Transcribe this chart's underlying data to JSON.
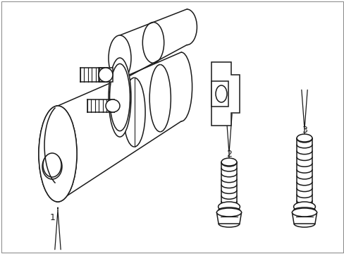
{
  "background_color": "#ffffff",
  "line_color": "#1a1a1a",
  "line_width": 1.1,
  "fig_width": 4.89,
  "fig_height": 3.6,
  "dpi": 100
}
